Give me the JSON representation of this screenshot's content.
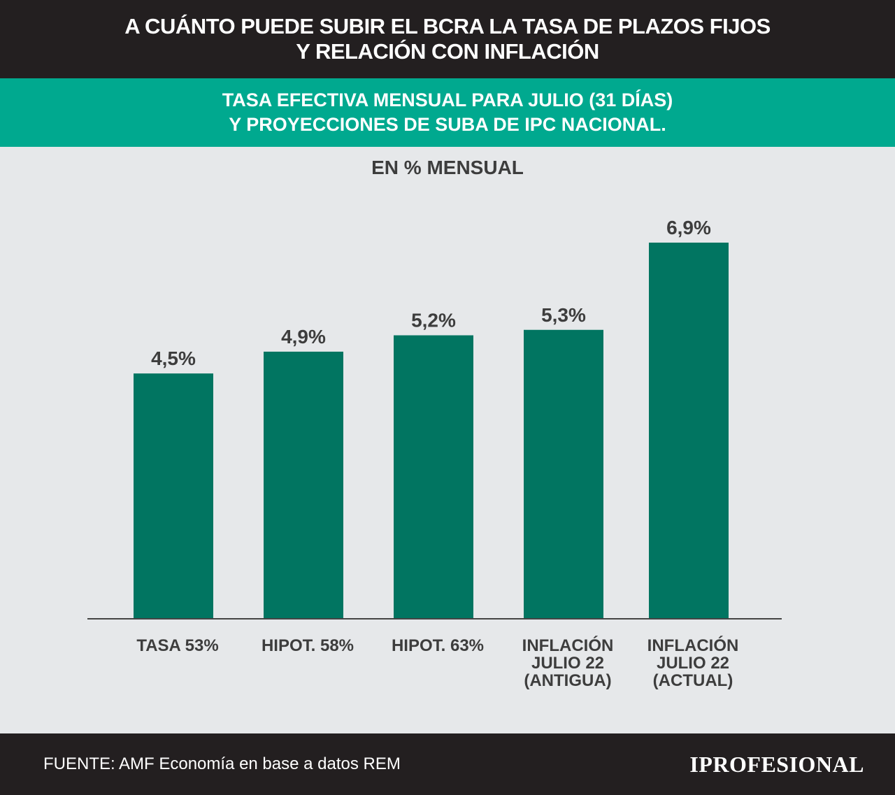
{
  "header": {
    "title_line1": "A CUÁNTO PUEDE SUBIR EL BCRA LA TASA DE PLAZOS FIJOS",
    "title_line2": "Y RELACIÓN CON INFLACIÓN"
  },
  "subheader": {
    "line1": "TASA EFECTIVA MENSUAL PARA JULIO (31 DÍAS)",
    "line2": "Y PROYECCIONES DE SUBA DE IPC NACIONAL."
  },
  "unit_label": "EN % MENSUAL",
  "footer": {
    "source": "FUENTE: AMF Economía en base a datos REM",
    "logo": "IPROFESIONAL"
  },
  "colors": {
    "bar": "#017561",
    "header_bg": "#231f20",
    "subheader_bg": "#00a98f",
    "background": "#e6e8ea",
    "text": "#3d3d3d"
  },
  "chart_data": {
    "type": "bar",
    "categories": [
      [
        "TASA 53%"
      ],
      [
        "HIPOT. 58%"
      ],
      [
        "HIPOT. 63%"
      ],
      [
        "INFLACIÓN",
        "JULIO 22",
        "(ANTIGUA)"
      ],
      [
        "INFLACIÓN",
        "JULIO 22",
        "(ACTUAL)"
      ]
    ],
    "values": [
      4.5,
      4.9,
      5.2,
      5.3,
      6.9
    ],
    "data_labels": [
      "4,5%",
      "4,9%",
      "5,2%",
      "5,3%",
      "6,9%"
    ],
    "ylim": [
      0,
      6.9
    ],
    "grid": false,
    "legend": "none"
  }
}
